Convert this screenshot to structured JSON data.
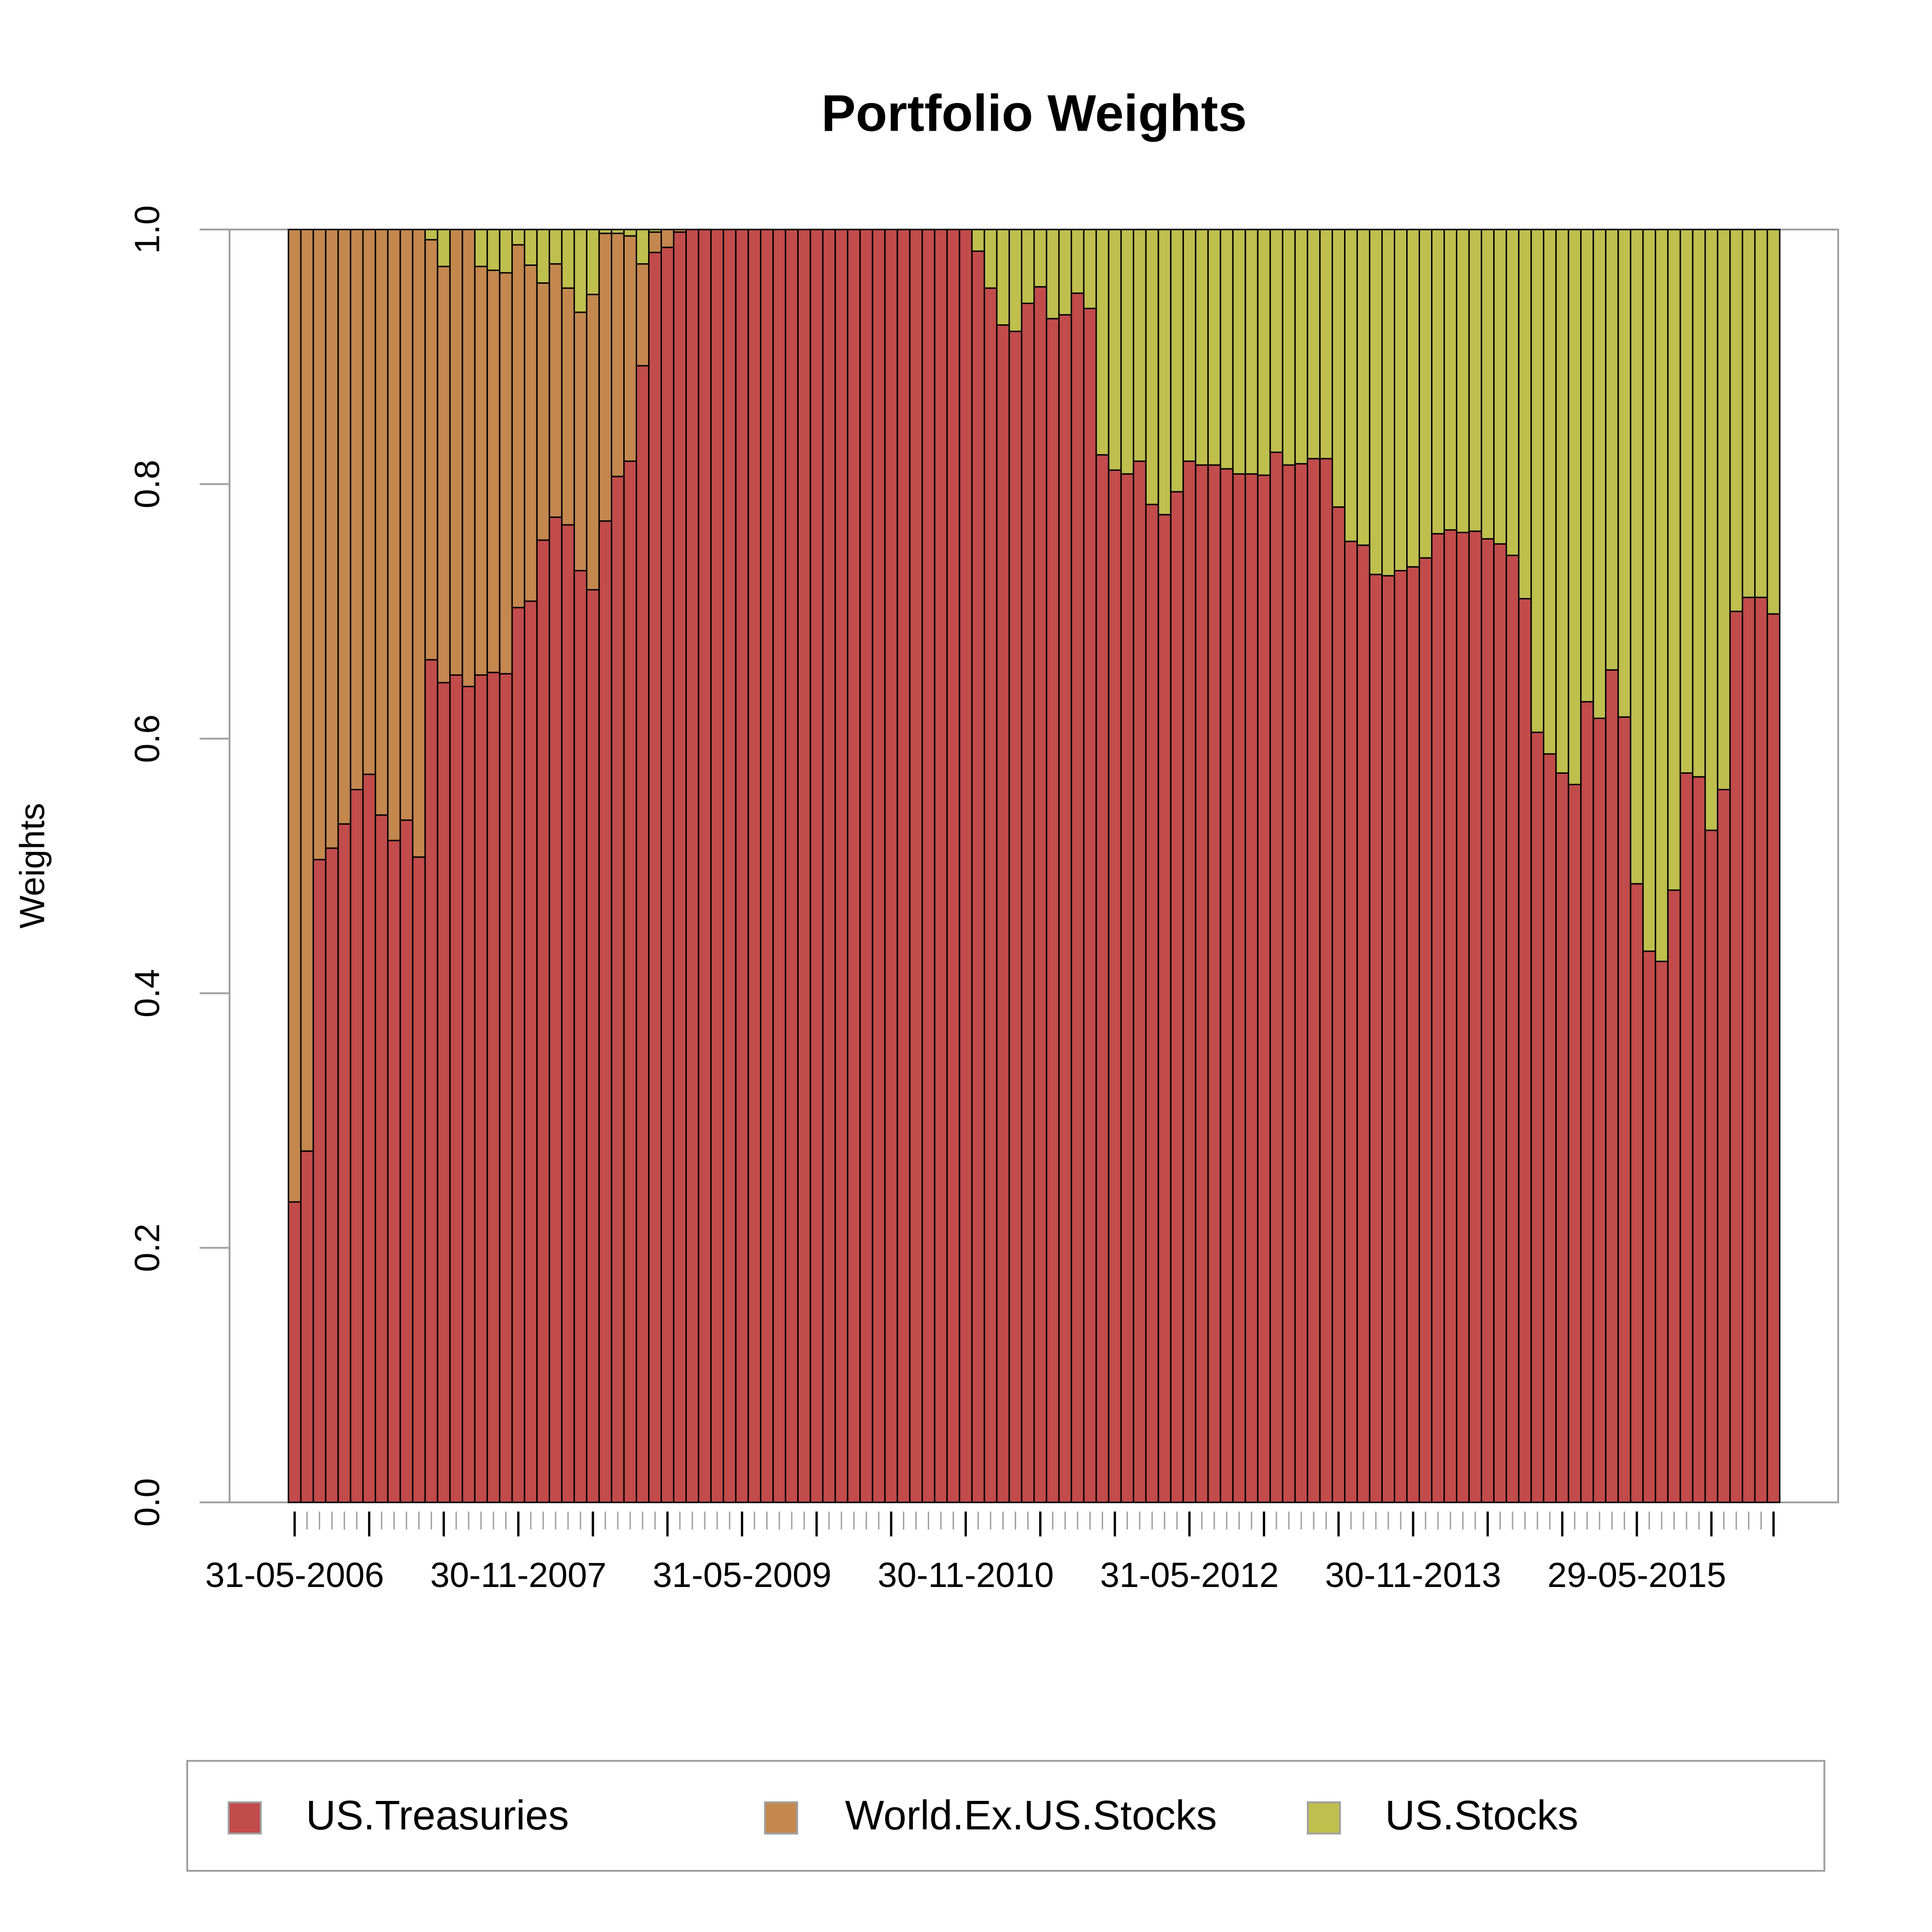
{
  "chart_data": {
    "type": "stacked-bar",
    "title": "Portfolio Weights",
    "y_label": "Weights",
    "categories": [
      "31-05-2006",
      null,
      null,
      null,
      null,
      null,
      null,
      null,
      null,
      null,
      null,
      null,
      null,
      null,
      null,
      null,
      null,
      null,
      "30-11-2007",
      null,
      null,
      null,
      null,
      null,
      null,
      null,
      null,
      null,
      null,
      null,
      null,
      null,
      null,
      null,
      null,
      null,
      "31-05-2009",
      null,
      null,
      null,
      null,
      null,
      null,
      null,
      null,
      null,
      null,
      null,
      null,
      null,
      null,
      null,
      null,
      null,
      "30-11-2010",
      null,
      null,
      null,
      null,
      null,
      null,
      null,
      null,
      null,
      null,
      null,
      null,
      null,
      null,
      null,
      null,
      null,
      "31-05-2012",
      null,
      null,
      null,
      null,
      null,
      null,
      null,
      null,
      null,
      null,
      null,
      null,
      null,
      null,
      null,
      null,
      null,
      "30-11-2013",
      null,
      null,
      null,
      null,
      null,
      null,
      null,
      null,
      null,
      null,
      null,
      null,
      null,
      null,
      null,
      null,
      null,
      "29-05-2015",
      null,
      null,
      null,
      null,
      null,
      null,
      null,
      null,
      null,
      null,
      null
    ],
    "series": [
      {
        "name": "US.Treasuries",
        "color": "#c24b4b",
        "values": [
          0.236,
          0.276,
          0.505,
          0.514,
          0.533,
          0.56,
          0.572,
          0.54,
          0.52,
          0.536,
          0.507,
          0.662,
          0.644,
          0.65,
          0.641,
          0.65,
          0.652,
          0.651,
          0.703,
          0.708,
          0.756,
          0.774,
          0.768,
          0.732,
          0.717,
          0.771,
          0.806,
          0.818,
          0.893,
          0.982,
          0.986,
          0.998,
          1,
          1,
          1,
          1,
          1,
          1,
          1,
          1,
          1,
          1,
          1,
          1,
          1,
          1,
          1,
          1,
          1,
          1,
          1,
          1,
          1,
          1,
          1,
          0.983,
          0.954,
          0.925,
          0.92,
          0.942,
          0.955,
          0.93,
          0.933,
          0.95,
          0.938,
          0.823,
          0.811,
          0.808,
          0.818,
          0.784,
          0.776,
          0.794,
          0.818,
          0.815,
          0.815,
          0.812,
          0.808,
          0.808,
          0.807,
          0.825,
          0.815,
          0.816,
          0.82,
          0.82,
          0.782,
          0.755,
          0.752,
          0.729,
          0.728,
          0.732,
          0.735,
          0.742,
          0.761,
          0.764,
          0.762,
          0.763,
          0.757,
          0.753,
          0.744,
          0.71,
          0.605,
          0.588,
          0.573,
          0.564,
          0.629,
          0.616,
          0.654,
          0.617,
          0.486,
          0.433,
          0.425,
          0.481,
          0.573,
          0.57,
          0.528,
          0.56,
          0.7,
          0.711,
          0.711,
          0.698
        ]
      },
      {
        "name": "World.Ex.US.Stocks",
        "color": "#c4874e",
        "values": [
          0.764,
          0.724,
          0.495,
          0.486,
          0.467,
          0.44,
          0.428,
          0.46,
          0.48,
          0.464,
          0.493,
          0.33,
          0.327,
          0.35,
          0.359,
          0.321,
          0.316,
          0.315,
          0.285,
          0.264,
          0.202,
          0.199,
          0.186,
          0.203,
          0.232,
          0.226,
          0.191,
          0.177,
          0.08,
          0.016,
          0.014,
          0.002,
          0,
          0,
          0,
          0,
          0,
          0,
          0,
          0,
          0,
          0,
          0,
          0,
          0,
          0,
          0,
          0,
          0,
          0,
          0,
          0,
          0,
          0,
          0,
          0,
          0,
          0,
          0,
          0,
          0,
          0,
          0,
          0,
          0,
          0,
          0,
          0,
          0,
          0,
          0,
          0,
          0,
          0,
          0,
          0,
          0,
          0,
          0,
          0,
          0,
          0,
          0,
          0,
          0,
          0,
          0,
          0,
          0,
          0,
          0,
          0,
          0,
          0,
          0,
          0,
          0,
          0,
          0,
          0,
          0,
          0,
          0,
          0,
          0,
          0,
          0,
          0,
          0,
          0,
          0,
          0,
          0,
          0,
          0,
          0,
          0,
          0,
          0,
          0
        ]
      },
      {
        "name": "US.Stocks",
        "color": "#bfbf4e",
        "values": [
          0,
          0,
          0,
          0,
          0,
          0,
          0,
          0,
          0,
          0,
          0,
          0.008,
          0.029,
          0,
          0,
          0.029,
          0.032,
          0.034,
          0.012,
          0.028,
          0.042,
          0.027,
          0.046,
          0.065,
          0.051,
          0.003,
          0.003,
          0.005,
          0.027,
          0.002,
          0,
          0,
          0,
          0,
          0,
          0,
          0,
          0,
          0,
          0,
          0,
          0,
          0,
          0,
          0,
          0,
          0,
          0,
          0,
          0,
          0,
          0,
          0,
          0,
          0,
          0.017,
          0.046,
          0.075,
          0.08,
          0.058,
          0.045,
          0.07,
          0.067,
          0.05,
          0.062,
          0.177,
          0.189,
          0.192,
          0.182,
          0.216,
          0.224,
          0.206,
          0.182,
          0.185,
          0.185,
          0.188,
          0.192,
          0.192,
          0.193,
          0.175,
          0.185,
          0.184,
          0.18,
          0.18,
          0.218,
          0.245,
          0.248,
          0.271,
          0.272,
          0.268,
          0.265,
          0.258,
          0.239,
          0.236,
          0.238,
          0.237,
          0.243,
          0.247,
          0.256,
          0.29,
          0.395,
          0.412,
          0.427,
          0.436,
          0.371,
          0.384,
          0.346,
          0.383,
          0.514,
          0.567,
          0.575,
          0.519,
          0.427,
          0.43,
          0.472,
          0.44,
          0.3,
          0.289,
          0.289,
          0.302
        ]
      }
    ],
    "ylim": [
      0,
      1
    ],
    "yticks": [
      {
        "value": 0,
        "label": "0.0"
      },
      0.2,
      0.4,
      0.6,
      0.8,
      {
        "value": 1,
        "label": "1.0"
      }
    ],
    "legend": "bottom"
  }
}
